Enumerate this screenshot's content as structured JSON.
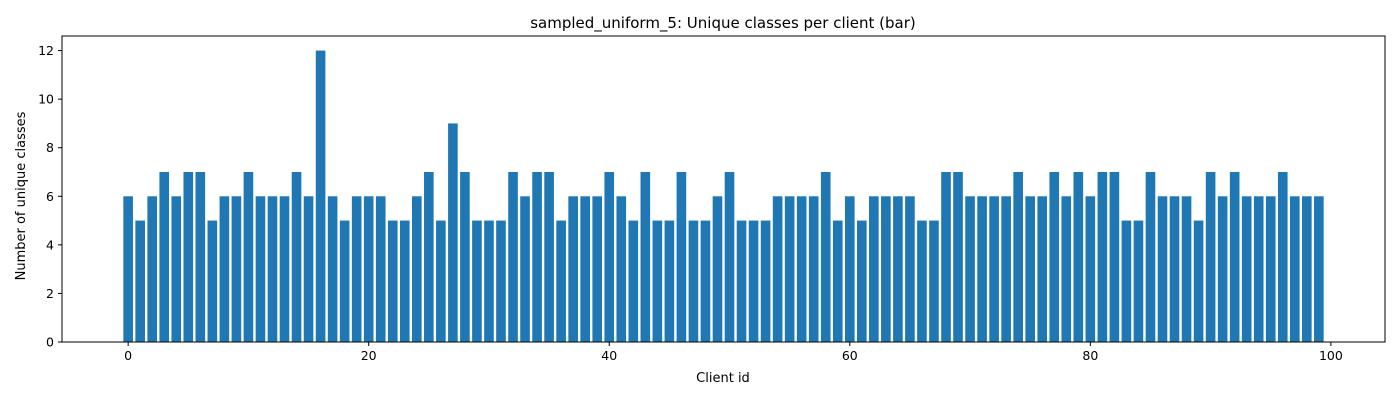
{
  "chart_data": {
    "type": "bar",
    "title": "sampled_uniform_5: Unique classes per client (bar)",
    "xlabel": "Client id",
    "ylabel": "Number of unique classes",
    "xlim": [
      -5.5,
      104.5
    ],
    "ylim": [
      0,
      12.6
    ],
    "xticks": [
      0,
      20,
      40,
      60,
      80,
      100
    ],
    "yticks": [
      0,
      2,
      4,
      6,
      8,
      10,
      12
    ],
    "grid": false,
    "bar_color": "#1f77b4",
    "x": [
      0,
      1,
      2,
      3,
      4,
      5,
      6,
      7,
      8,
      9,
      10,
      11,
      12,
      13,
      14,
      15,
      16,
      17,
      18,
      19,
      20,
      21,
      22,
      23,
      24,
      25,
      26,
      27,
      28,
      29,
      30,
      31,
      32,
      33,
      34,
      35,
      36,
      37,
      38,
      39,
      40,
      41,
      42,
      43,
      44,
      45,
      46,
      47,
      48,
      49,
      50,
      51,
      52,
      53,
      54,
      55,
      56,
      57,
      58,
      59,
      60,
      61,
      62,
      63,
      64,
      65,
      66,
      67,
      68,
      69,
      70,
      71,
      72,
      73,
      74,
      75,
      76,
      77,
      78,
      79,
      80,
      81,
      82,
      83,
      84,
      85,
      86,
      87,
      88,
      89,
      90,
      91,
      92,
      93,
      94,
      95,
      96,
      97,
      98,
      99
    ],
    "values": [
      6,
      5,
      6,
      7,
      6,
      7,
      7,
      5,
      6,
      6,
      7,
      6,
      6,
      6,
      7,
      6,
      12,
      6,
      5,
      6,
      6,
      6,
      5,
      5,
      6,
      7,
      5,
      9,
      7,
      5,
      5,
      5,
      7,
      6,
      7,
      7,
      5,
      6,
      6,
      6,
      7,
      6,
      5,
      7,
      5,
      5,
      7,
      5,
      5,
      6,
      7,
      5,
      5,
      5,
      6,
      6,
      6,
      6,
      7,
      5,
      6,
      5,
      6,
      6,
      6,
      6,
      5,
      5,
      7,
      7,
      6,
      6,
      6,
      6,
      7,
      6,
      6,
      7,
      6,
      7,
      6,
      7,
      7,
      5,
      5,
      7,
      6,
      6,
      6,
      5,
      7,
      6,
      7,
      6,
      6,
      6,
      7,
      6,
      6,
      6
    ]
  }
}
